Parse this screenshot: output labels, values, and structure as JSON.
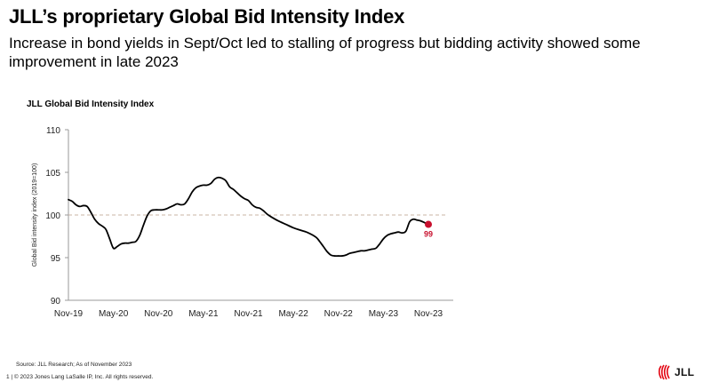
{
  "header": {
    "title": "JLL’s proprietary Global Bid Intensity Index",
    "subtitle": "Increase in bond yields in Sept/Oct led to stalling of progress but bidding activity showed some improvement in late 2023"
  },
  "chart_data": {
    "type": "line",
    "title": "JLL Global Bid Intensity Index",
    "xlabel": "",
    "ylabel": "Global Bid intensity index (2019=100)",
    "ylim": [
      90,
      110
    ],
    "yticks": [
      90,
      95,
      100,
      105,
      110
    ],
    "xlim": [
      0,
      48
    ],
    "xticks": [
      {
        "label": "Nov-19",
        "x": 0
      },
      {
        "label": "May-20",
        "x": 6
      },
      {
        "label": "Nov-20",
        "x": 12
      },
      {
        "label": "May-21",
        "x": 18
      },
      {
        "label": "Nov-21",
        "x": 24
      },
      {
        "label": "May-22",
        "x": 30
      },
      {
        "label": "Nov-22",
        "x": 36
      },
      {
        "label": "May-23",
        "x": 42
      },
      {
        "label": "Nov-23",
        "x": 48
      }
    ],
    "reference_line": {
      "y": 100,
      "style": "dashed"
    },
    "series": [
      {
        "name": "JLL Global Bid Intensity Index",
        "color": "#000000",
        "x": [
          0,
          0.5,
          1,
          1.5,
          2,
          2.5,
          3,
          3.5,
          4,
          4.5,
          5,
          5.5,
          6,
          6.5,
          7,
          7.5,
          8,
          8.5,
          9,
          9.5,
          10,
          10.5,
          11,
          11.5,
          12,
          12.5,
          13,
          13.5,
          14,
          14.5,
          15,
          15.5,
          16,
          16.5,
          17,
          17.5,
          18,
          18.5,
          19,
          19.5,
          20,
          20.5,
          21,
          21.5,
          22,
          22.5,
          23,
          23.5,
          24,
          24.5,
          25,
          25.5,
          26,
          26.5,
          27,
          28,
          29,
          30,
          31,
          32,
          33,
          33.5,
          34,
          34.5,
          35,
          35.5,
          36,
          36.5,
          37,
          37.5,
          38,
          38.5,
          39,
          39.5,
          40,
          40.5,
          41,
          41.5,
          42,
          42.5,
          43,
          43.5,
          44,
          44.5,
          45,
          45.5,
          46,
          46.5,
          47,
          47.5,
          48
        ],
        "y": [
          101.8,
          101.6,
          101.2,
          101.0,
          101.1,
          101.0,
          100.3,
          99.5,
          99.0,
          98.7,
          98.3,
          97.2,
          96.1,
          96.3,
          96.6,
          96.7,
          96.7,
          96.8,
          96.9,
          97.6,
          98.8,
          99.9,
          100.5,
          100.6,
          100.6,
          100.6,
          100.7,
          100.9,
          101.1,
          101.3,
          101.2,
          101.3,
          101.9,
          102.7,
          103.2,
          103.4,
          103.5,
          103.5,
          103.7,
          104.2,
          104.4,
          104.3,
          104.0,
          103.3,
          103.0,
          102.6,
          102.2,
          101.9,
          101.7,
          101.2,
          100.9,
          100.8,
          100.5,
          100.1,
          99.8,
          99.3,
          98.9,
          98.5,
          98.2,
          97.9,
          97.4,
          96.9,
          96.3,
          95.7,
          95.3,
          95.2,
          95.2,
          95.2,
          95.3,
          95.5,
          95.6,
          95.7,
          95.8,
          95.8,
          95.9,
          96.0,
          96.1,
          96.6,
          97.2,
          97.6,
          97.8,
          97.9,
          98.0,
          97.9,
          98.1,
          99.2,
          99.5,
          99.4,
          99.3,
          99.1,
          98.9
        ]
      }
    ],
    "annotations": [
      {
        "x": 48,
        "y": 98.9,
        "label": "99",
        "color": "#c8102e"
      }
    ]
  },
  "footer": {
    "source": "Source: JLL Research; As of November 2023",
    "copyright": "1  |  © 2023 Jones Lang LaSalle IP, Inc. All rights reserved."
  },
  "logo": {
    "text": "JLL",
    "color": "#e30613"
  }
}
